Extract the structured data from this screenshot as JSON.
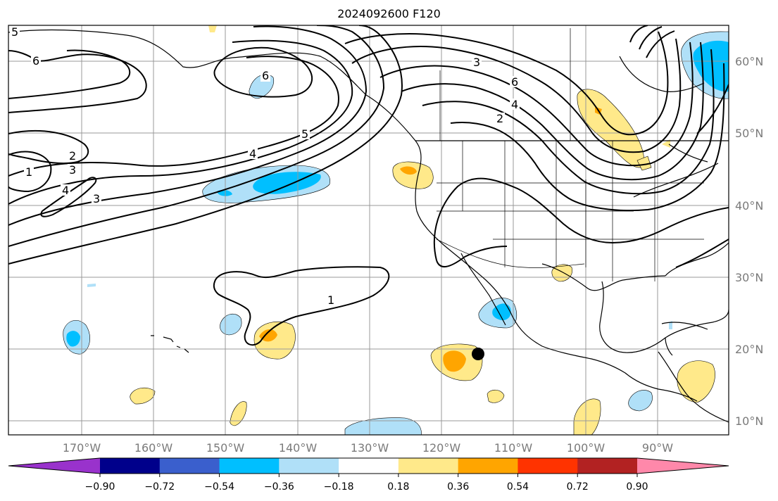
{
  "title": "2024092600 F120",
  "map": {
    "lon_labels": [
      "170°W",
      "160°W",
      "150°W",
      "140°W",
      "130°W",
      "120°W",
      "110°W",
      "100°W",
      "90°W"
    ],
    "lat_labels": [
      "60°N",
      "50°N",
      "40°N",
      "30°N",
      "20°N",
      "10°N"
    ],
    "contour_labels": [
      "5",
      "6",
      "6",
      "3",
      "6",
      "4",
      "2",
      "5",
      "4",
      "2",
      "3",
      "4",
      "3",
      "1",
      "1"
    ],
    "storm_marker": "tropical-cyclone-position"
  },
  "colorbar": {
    "ticks": [
      "−0.90",
      "−0.72",
      "−0.54",
      "−0.36",
      "−0.18",
      "0.18",
      "0.36",
      "0.54",
      "0.72",
      "0.90"
    ],
    "colors": [
      "#9932cc",
      "#00008b",
      "#3a5fcd",
      "#00bfff",
      "#b0e0f8",
      "#ffffff",
      "#ffe98a",
      "#ffa500",
      "#ff3300",
      "#b22222",
      "#ff88aa"
    ]
  }
}
